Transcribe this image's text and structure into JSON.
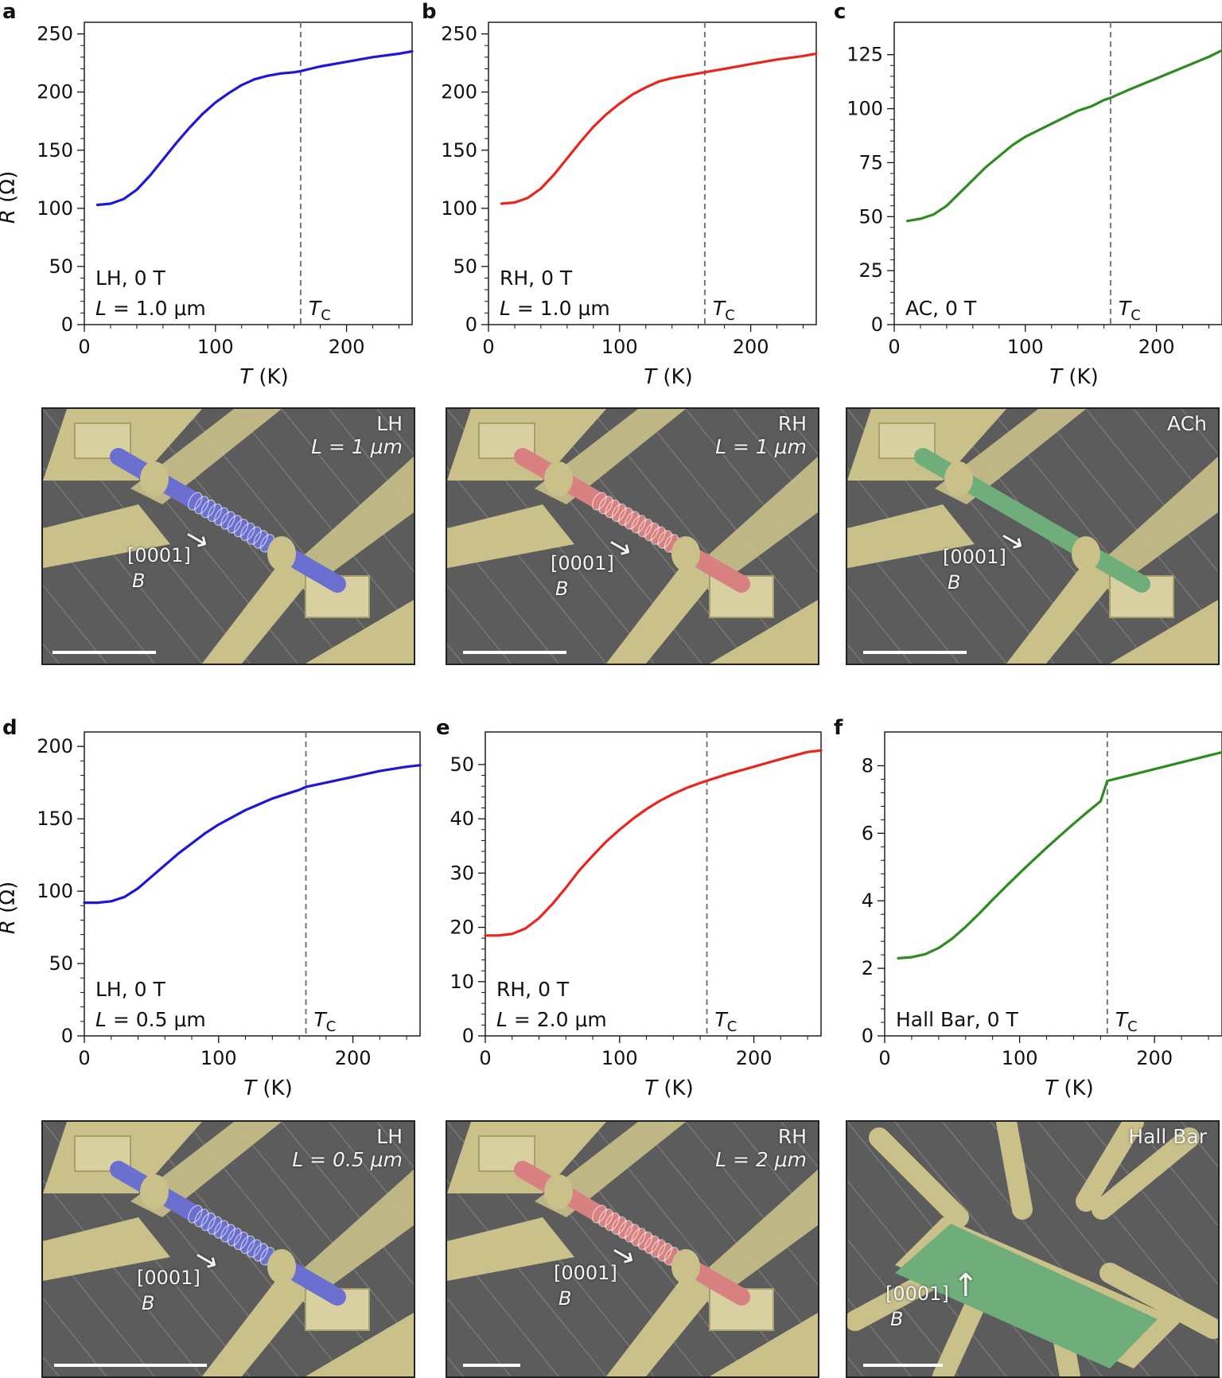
{
  "panels": [
    {
      "letter": "a"
    },
    {
      "letter": "b"
    },
    {
      "letter": "c"
    },
    {
      "letter": "d"
    },
    {
      "letter": "e"
    },
    {
      "letter": "f"
    }
  ],
  "tc_label": {
    "main": "T",
    "sub": "C"
  },
  "chart_data": [
    {
      "type": "line",
      "panel": "a",
      "xlabel": "T (K)",
      "ylabel": "R (Ω)",
      "xlim": [
        0,
        250
      ],
      "ylim": [
        0,
        260
      ],
      "xticks": [
        0,
        100,
        200
      ],
      "yticks": [
        0,
        50,
        100,
        150,
        200,
        250
      ],
      "tc": 165,
      "color": "#1f17d6",
      "annotation": [
        "LH, 0 T",
        "L = 1.0 μm"
      ],
      "x": [
        10,
        20,
        30,
        40,
        50,
        60,
        70,
        80,
        90,
        100,
        110,
        120,
        130,
        140,
        150,
        160,
        165,
        180,
        200,
        220,
        240,
        250
      ],
      "y": [
        103,
        104,
        108,
        116,
        128,
        142,
        156,
        169,
        181,
        191,
        199,
        206,
        211,
        214,
        216,
        217,
        218,
        222,
        226,
        230,
        233,
        235
      ]
    },
    {
      "type": "line",
      "panel": "b",
      "xlabel": "T (K)",
      "ylabel": "",
      "xlim": [
        0,
        250
      ],
      "ylim": [
        0,
        260
      ],
      "xticks": [
        0,
        100,
        200
      ],
      "yticks": [
        0,
        50,
        100,
        150,
        200,
        250
      ],
      "tc": 165,
      "color": "#e8261e",
      "annotation": [
        "RH, 0 T",
        "L = 1.0 μm"
      ],
      "x": [
        10,
        20,
        30,
        40,
        50,
        60,
        70,
        80,
        90,
        100,
        110,
        120,
        130,
        140,
        150,
        160,
        165,
        180,
        200,
        220,
        240,
        250
      ],
      "y": [
        104,
        105,
        109,
        117,
        129,
        143,
        157,
        170,
        181,
        190,
        198,
        204,
        209,
        212,
        214,
        216,
        217,
        220,
        224,
        228,
        231,
        233
      ]
    },
    {
      "type": "line",
      "panel": "c",
      "xlabel": "T (K)",
      "ylabel": "",
      "xlim": [
        0,
        250
      ],
      "ylim": [
        0,
        140
      ],
      "xticks": [
        0,
        100,
        200
      ],
      "yticks": [
        0,
        25,
        50,
        75,
        100,
        125
      ],
      "tc": 165,
      "color": "#2e8b22",
      "annotation": [
        "AC, 0 T"
      ],
      "x": [
        10,
        20,
        30,
        40,
        50,
        60,
        70,
        80,
        90,
        100,
        110,
        120,
        130,
        140,
        150,
        160,
        165,
        180,
        200,
        220,
        240,
        250
      ],
      "y": [
        48,
        49,
        51,
        55,
        61,
        67,
        73,
        78,
        83,
        87,
        90,
        93,
        96,
        99,
        101,
        104,
        105,
        109,
        114,
        119,
        124,
        127
      ]
    },
    {
      "type": "line",
      "panel": "d",
      "xlabel": "T (K)",
      "ylabel": "R (Ω)",
      "xlim": [
        0,
        250
      ],
      "ylim": [
        0,
        210
      ],
      "xticks": [
        0,
        100,
        200
      ],
      "yticks": [
        0,
        50,
        100,
        150,
        200
      ],
      "tc": 165,
      "color": "#1f17d6",
      "annotation": [
        "LH, 0 T",
        "L = 0.5 μm"
      ],
      "x": [
        0,
        10,
        20,
        30,
        40,
        50,
        60,
        70,
        80,
        90,
        100,
        110,
        120,
        130,
        140,
        150,
        160,
        165,
        180,
        200,
        220,
        240,
        250
      ],
      "y": [
        92,
        92,
        93,
        96,
        102,
        110,
        118,
        126,
        133,
        140,
        146,
        151,
        156,
        160,
        164,
        167,
        170,
        172,
        175,
        179,
        183,
        186,
        187
      ]
    },
    {
      "type": "line",
      "panel": "e",
      "xlabel": "T (K)",
      "ylabel": "",
      "xlim": [
        0,
        250
      ],
      "ylim": [
        0,
        56
      ],
      "xticks": [
        0,
        100,
        200
      ],
      "yticks": [
        0,
        10,
        20,
        30,
        40,
        50
      ],
      "tc": 165,
      "color": "#e8261e",
      "annotation": [
        "RH, 0 T",
        "L = 2.0 μm"
      ],
      "x": [
        0,
        10,
        20,
        30,
        40,
        50,
        60,
        70,
        80,
        90,
        100,
        110,
        120,
        130,
        140,
        150,
        160,
        165,
        180,
        200,
        220,
        240,
        250
      ],
      "y": [
        18.5,
        18.5,
        18.8,
        19.8,
        21.7,
        24.3,
        27.3,
        30.5,
        33.2,
        35.8,
        38.0,
        40.0,
        41.8,
        43.3,
        44.6,
        45.7,
        46.6,
        47.0,
        48.2,
        49.6,
        51.0,
        52.3,
        52.6
      ]
    },
    {
      "type": "line",
      "panel": "f",
      "xlabel": "T (K)",
      "ylabel": "",
      "xlim": [
        0,
        250
      ],
      "ylim": [
        0,
        9
      ],
      "xticks": [
        0,
        100,
        200
      ],
      "yticks": [
        0,
        2,
        4,
        6,
        8
      ],
      "tc": 165,
      "color": "#2e8b22",
      "annotation": [
        "Hall Bar, 0 T"
      ],
      "x": [
        10,
        20,
        30,
        40,
        50,
        60,
        70,
        80,
        90,
        100,
        110,
        120,
        130,
        140,
        150,
        160,
        165,
        180,
        200,
        220,
        240,
        250
      ],
      "y": [
        2.3,
        2.33,
        2.42,
        2.6,
        2.88,
        3.23,
        3.62,
        4.03,
        4.43,
        4.82,
        5.2,
        5.57,
        5.93,
        6.28,
        6.62,
        6.95,
        7.55,
        7.7,
        7.9,
        8.1,
        8.3,
        8.4
      ]
    }
  ],
  "sem_images": [
    {
      "panel": "a",
      "label1": "LH",
      "label2": "L = 1 μm",
      "direction": "[0001]",
      "field": "B",
      "device_color": "#6a6fd0",
      "arrow": "→"
    },
    {
      "panel": "b",
      "label1": "RH",
      "label2": "L = 1 μm",
      "direction": "[0001]",
      "field": "B",
      "device_color": "#d98080",
      "arrow": "→"
    },
    {
      "panel": "c",
      "label1": "ACh",
      "label2": "",
      "direction": "[0001]",
      "field": "B",
      "device_color": "#6fae7a",
      "arrow": "→"
    },
    {
      "panel": "d",
      "label1": "LH",
      "label2": "L = 0.5 μm",
      "direction": "[0001]",
      "field": "B",
      "device_color": "#6a6fd0",
      "arrow": "→"
    },
    {
      "panel": "e",
      "label1": "RH",
      "label2": "L = 2 μm",
      "direction": "[0001]",
      "field": "B",
      "device_color": "#d98080",
      "arrow": "→"
    },
    {
      "panel": "f",
      "label1": "Hall Bar",
      "label2": "",
      "direction": "[0001]",
      "field": "B",
      "device_color": "#6fae7a",
      "arrow": "↑"
    }
  ],
  "colors": {
    "contact": "#c9c08a",
    "substrate": "#5c5c5c",
    "ridge": "#8a8a8a"
  }
}
